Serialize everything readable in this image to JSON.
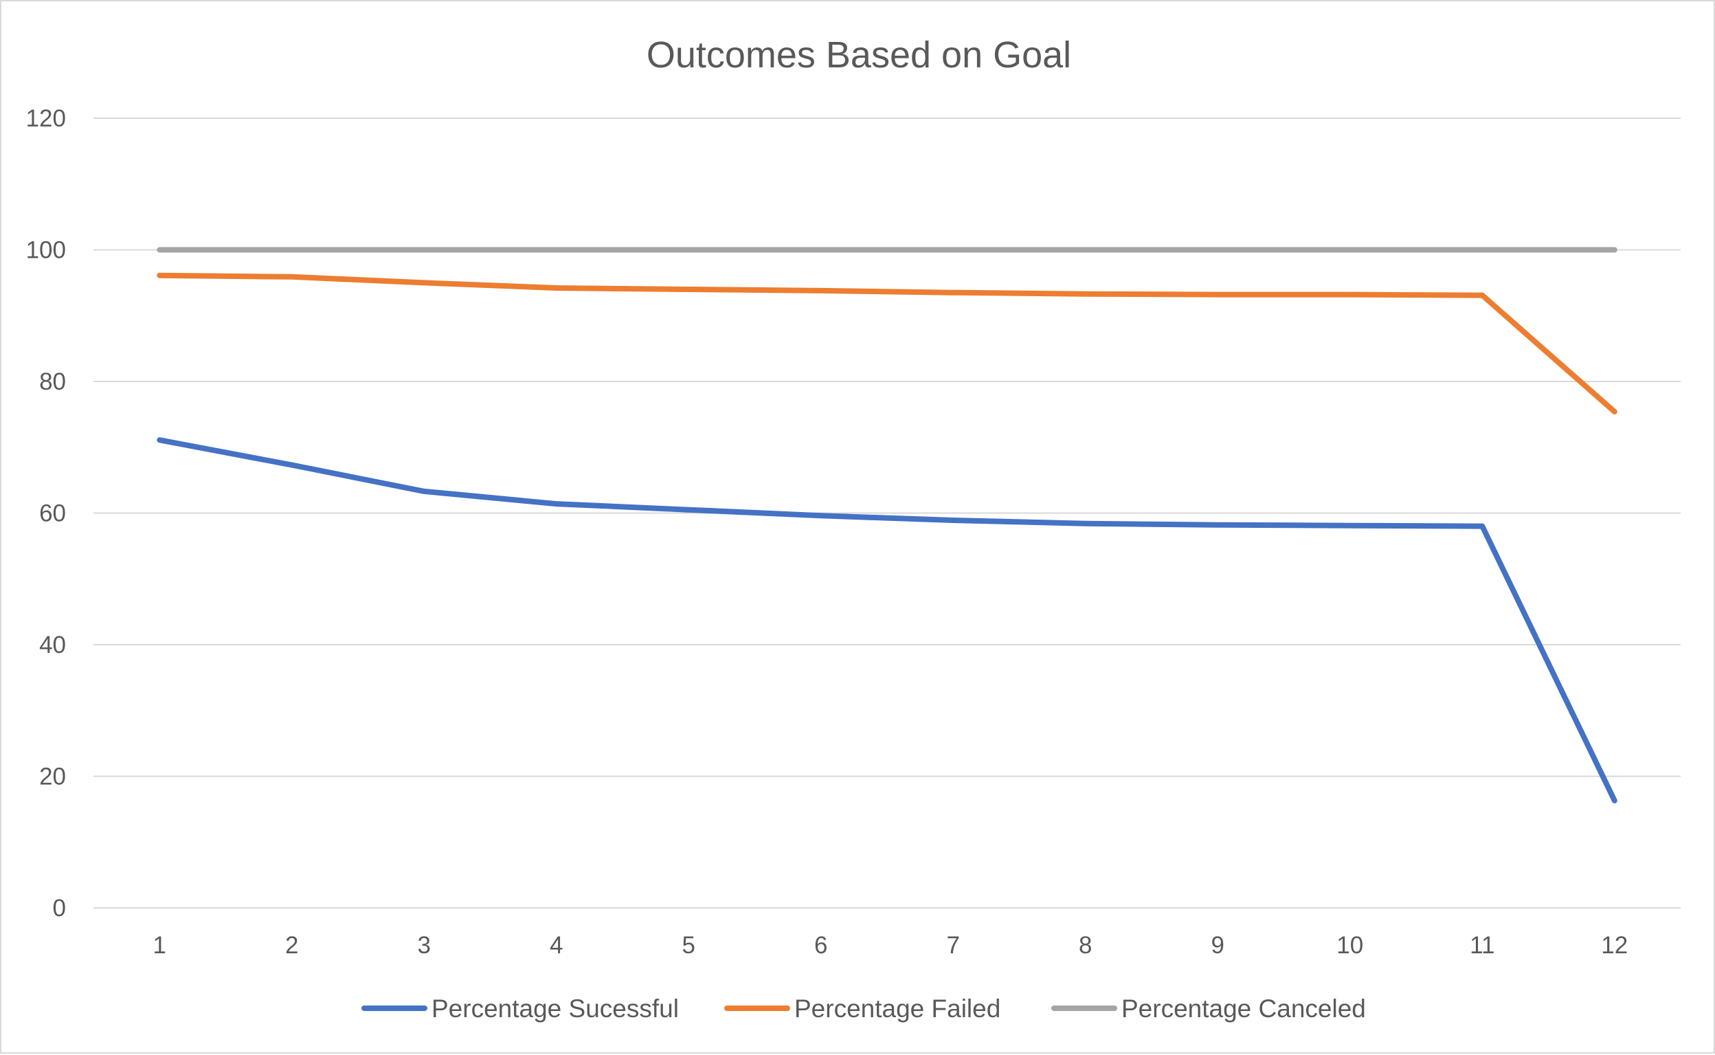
{
  "chart_data": {
    "type": "line",
    "title": "Outcomes Based on Goal",
    "xlabel": "",
    "ylabel": "",
    "x": [
      1,
      2,
      3,
      4,
      5,
      6,
      7,
      8,
      9,
      10,
      11,
      12
    ],
    "x_tick_labels": [
      "1",
      "2",
      "3",
      "4",
      "5",
      "6",
      "7",
      "8",
      "9",
      "10",
      "11",
      "12"
    ],
    "ylim": [
      0,
      120
    ],
    "y_ticks": [
      0,
      20,
      40,
      60,
      80,
      100,
      120
    ],
    "y_tick_labels": [
      "0",
      "20",
      "40",
      "60",
      "80",
      "100",
      "120"
    ],
    "grid": "horizontal",
    "legend_position": "bottom",
    "series": [
      {
        "name": "Percentage Sucessful",
        "color": "#4472c4",
        "values": [
          71.1,
          67.3,
          63.3,
          61.4,
          60.5,
          59.6,
          58.9,
          58.4,
          58.2,
          58.1,
          58.0,
          16.3
        ]
      },
      {
        "name": "Percentage Failed",
        "color": "#ed7d31",
        "values": [
          96.1,
          95.9,
          95.0,
          94.2,
          94.0,
          93.8,
          93.5,
          93.3,
          93.2,
          93.2,
          93.1,
          75.4
        ]
      },
      {
        "name": "Percentage Canceled",
        "color": "#a5a5a5",
        "values": [
          100,
          100,
          100,
          100,
          100,
          100,
          100,
          100,
          100,
          100,
          100,
          100
        ]
      }
    ]
  },
  "colors": {
    "gridline": "#d9d9d9",
    "text": "#595959",
    "border": "#d9d9d9"
  }
}
